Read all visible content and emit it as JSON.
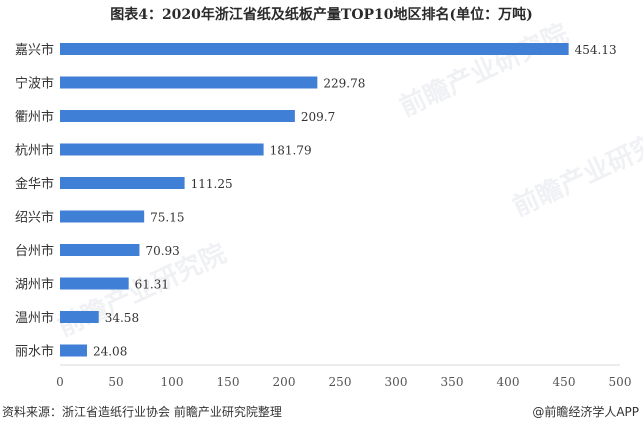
{
  "chart_data": {
    "type": "bar",
    "orientation": "horizontal",
    "title": "图表4：2020年浙江省纸及纸板产量TOP10地区排名(单位：万吨)",
    "categories": [
      "嘉兴市",
      "宁波市",
      "衢州市",
      "杭州市",
      "金华市",
      "绍兴市",
      "台州市",
      "湖州市",
      "温州市",
      "丽水市"
    ],
    "values": [
      454.13,
      229.78,
      209.7,
      181.79,
      111.25,
      75.15,
      70.93,
      61.31,
      34.58,
      24.08
    ],
    "value_labels": [
      "454.13",
      "229.78",
      "209.7",
      "181.79",
      "111.25",
      "75.15",
      "70.93",
      "61.31",
      "34.58",
      "24.08"
    ],
    "xlim": [
      0,
      500
    ],
    "xticks": [
      "0",
      "50",
      "100",
      "150",
      "200",
      "250",
      "300",
      "350",
      "400",
      "450",
      "500"
    ],
    "xlabel": "",
    "ylabel": "",
    "grid": false,
    "legend": "none",
    "bar_color": "#3f7fd6"
  },
  "footer": {
    "source": "资料来源：浙江省造纸行业协会 前瞻产业研究院整理",
    "credit": "@前瞻经济学人APP"
  },
  "watermark": {
    "text": "前瞻产业研究院"
  }
}
